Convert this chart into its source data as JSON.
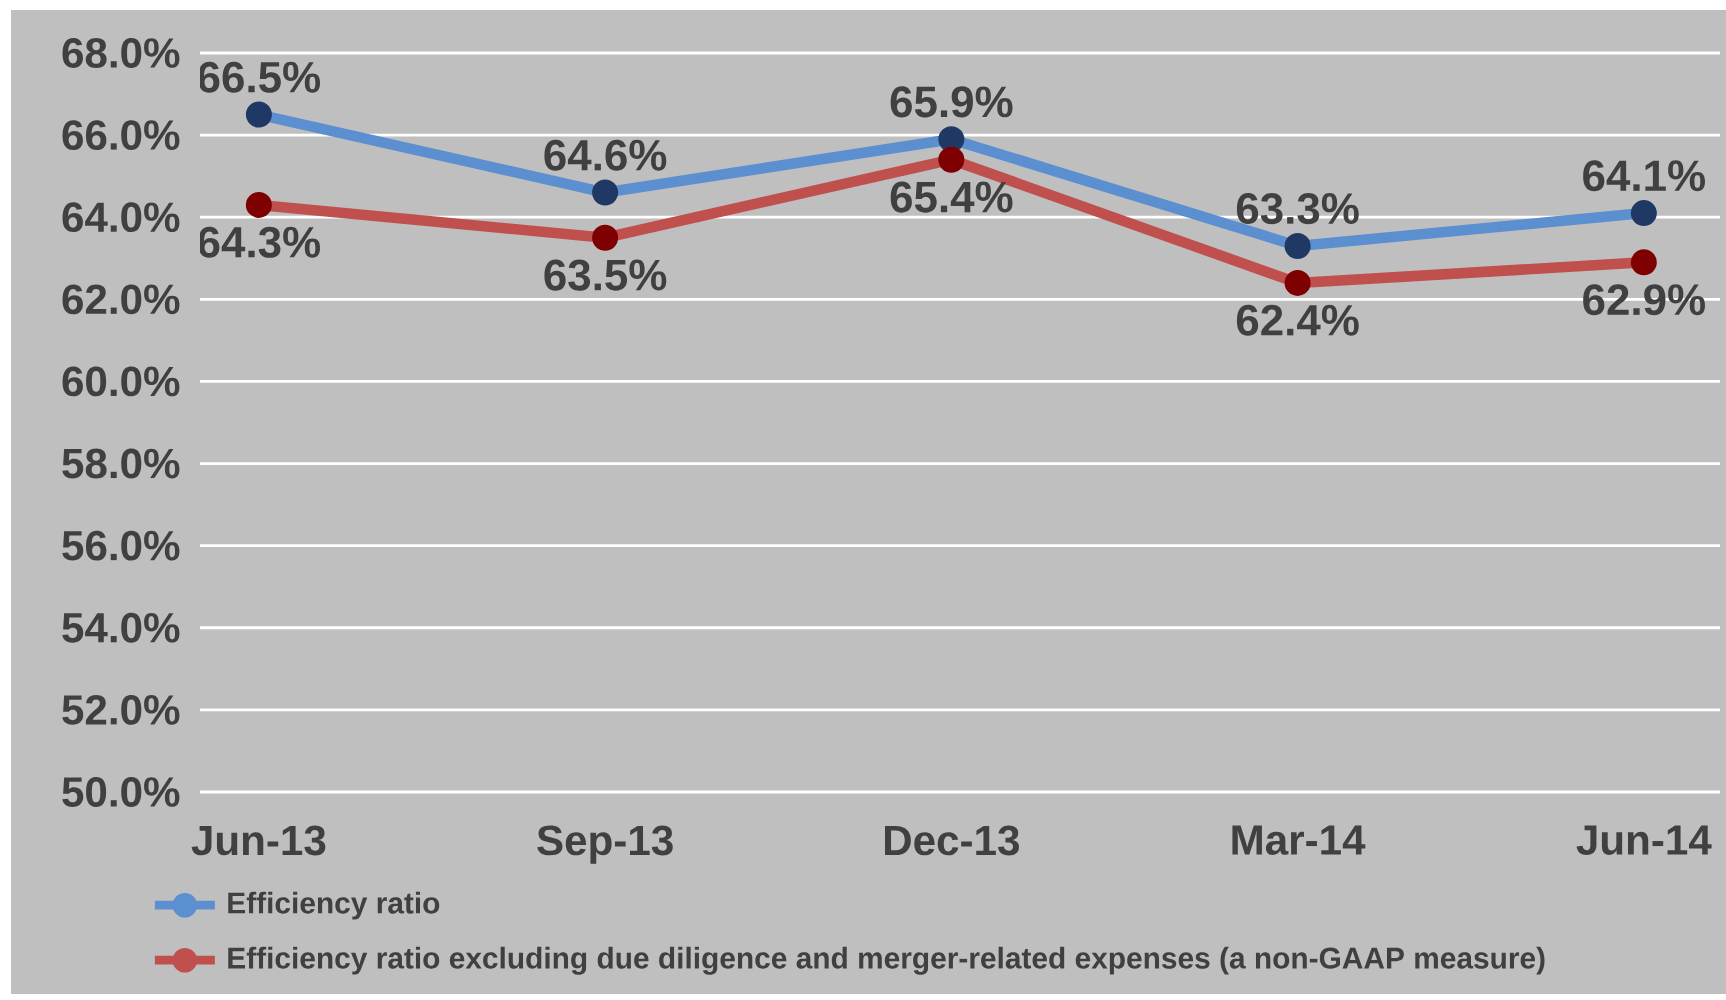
{
  "chart_data": {
    "type": "line",
    "categories": [
      "Jun-13",
      "Sep-13",
      "Dec-13",
      "Mar-14",
      "Jun-14"
    ],
    "series": [
      {
        "name": "Efficiency ratio",
        "color": "#5b8fd0",
        "values": [
          66.5,
          64.6,
          65.9,
          63.3,
          64.1
        ],
        "value_labels": [
          "66.5%",
          "64.6%",
          "65.9%",
          "63.3%",
          "64.1%"
        ]
      },
      {
        "name": "Efficiency ratio excluding due diligence and merger-related expenses (a non-GAAP measure)",
        "color": "#c0504d",
        "values": [
          64.3,
          63.5,
          65.4,
          62.4,
          62.9
        ],
        "value_labels": [
          "64.3%",
          "63.5%",
          "65.4%",
          "62.4%",
          "62.9%"
        ]
      }
    ],
    "ylim": [
      50,
      68
    ],
    "yticks": [
      {
        "value": 50,
        "label": "50.0%"
      },
      {
        "value": 52,
        "label": "52.0%"
      },
      {
        "value": 54,
        "label": "54.0%"
      },
      {
        "value": 56,
        "label": "56.0%"
      },
      {
        "value": 58,
        "label": "58.0%"
      },
      {
        "value": 60,
        "label": "60.0%"
      },
      {
        "value": 62,
        "label": "62.0%"
      },
      {
        "value": 64,
        "label": "64.0%"
      },
      {
        "value": 66,
        "label": "66.0%"
      },
      {
        "value": 68,
        "label": "68.0%"
      }
    ],
    "grid": "y",
    "marker": "circle",
    "line_style": "solid",
    "legend": "bottom"
  }
}
